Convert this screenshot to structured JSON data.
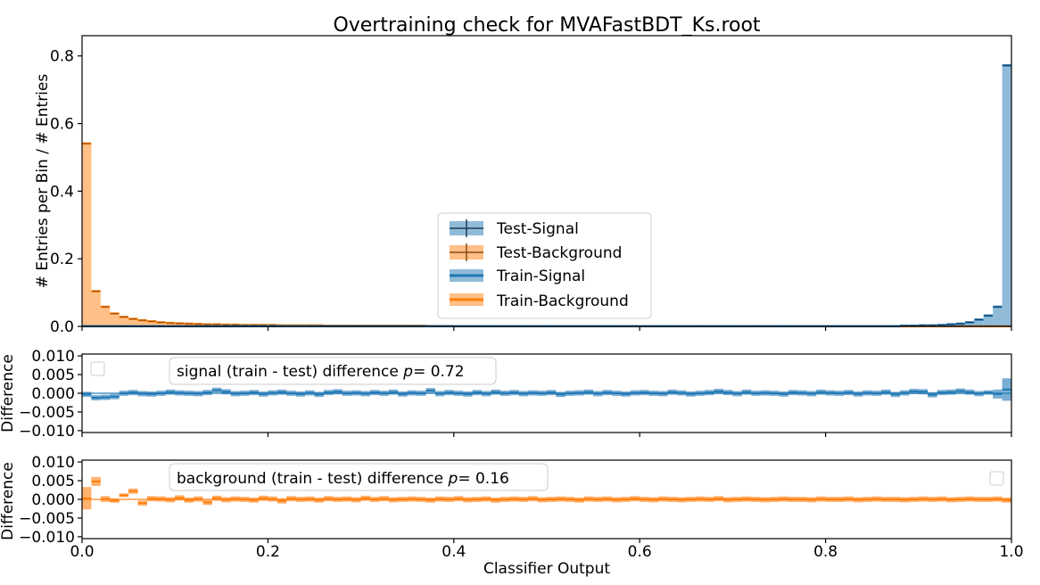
{
  "chart_data": [
    {
      "panel": "main",
      "type": "bar",
      "title": "Overtraining check for MVAFastBDT_Ks.root",
      "xlabel": "",
      "ylabel": "# Entries per Bin / # Entries",
      "xlim": [
        0.0,
        1.0
      ],
      "ylim": [
        0.0,
        0.86
      ],
      "yticks": [
        "0.0",
        "0.2",
        "0.4",
        "0.6",
        "0.8"
      ],
      "xticks": [
        "0.0",
        "0.2",
        "0.4",
        "0.6",
        "0.8",
        "1.0"
      ],
      "legend_location": "center",
      "legend": [
        "Test-Signal",
        "Test-Background",
        "Train-Signal",
        "Train-Background"
      ],
      "colors": {
        "signal": "#1f77b4",
        "background": "#ff7f0e"
      },
      "bins": 100,
      "background_values": [
        0.541,
        0.104,
        0.058,
        0.038,
        0.028,
        0.022,
        0.018,
        0.015,
        0.012,
        0.01,
        0.009,
        0.008,
        0.007,
        0.006,
        0.006,
        0.005,
        0.005,
        0.004,
        0.004,
        0.004,
        0.004,
        0.003,
        0.003,
        0.003,
        0.003,
        0.003,
        0.002,
        0.002,
        0.002,
        0.002,
        0.002,
        0.002,
        0.002,
        0.002,
        0.002,
        0.002,
        0.002,
        0.001,
        0.001,
        0.001
      ],
      "signal_values_last": [
        0.002,
        0.002,
        0.003,
        0.003,
        0.004,
        0.006,
        0.008,
        0.012,
        0.02,
        0.032,
        0.058,
        0.772
      ],
      "series": [
        {
          "name": "Test-Signal",
          "peak_value": 0.772,
          "peak_x": 0.995
        },
        {
          "name": "Test-Background",
          "peak_value": 0.541,
          "peak_x": 0.005
        },
        {
          "name": "Train-Signal"
        },
        {
          "name": "Train-Background"
        }
      ]
    },
    {
      "panel": "signal_difference",
      "type": "bar",
      "ylabel": "Difference",
      "ylim": [
        -0.0105,
        0.0105
      ],
      "yticks": [
        "0.010",
        "0.005",
        "0.000",
        "−0.005",
        "−0.010"
      ],
      "annotation_prefix": "signal (train - test) difference ",
      "annotation_p": "= 0.72",
      "color": "#1f77b4",
      "values": [
        -0.0003,
        -0.0012,
        -0.0011,
        -0.0009,
        0.0,
        0.0002,
        -0.0001,
        -0.0002,
        0.0,
        0.0003,
        0.0001,
        0.0,
        -0.0001,
        0.0002,
        0.0008,
        0.0004,
        -0.0001,
        0.0,
        0.0002,
        -0.0002,
        0.0001,
        0.0003,
        0.0,
        -0.0002,
        0.0001,
        -0.0003,
        0.0002,
        0.0004,
        0.0,
        0.0001,
        -0.0001,
        0.0002,
        0.0,
        0.0003,
        -0.0002,
        0.0001,
        0.0,
        0.0007,
        -0.0001,
        0.0002,
        0.0,
        -0.0002,
        0.0002,
        -0.0001,
        0.0003,
        0.0,
        0.0002,
        -0.0001,
        0.0001,
        0.0,
        0.0002,
        -0.0003,
        0.0,
        0.0001,
        0.0003,
        -0.0001,
        0.0002,
        0.0,
        -0.0002,
        0.0001,
        0.0002,
        0.0,
        -0.0001,
        0.0003,
        0.0001,
        -0.0002,
        0.0,
        0.0002,
        0.0005,
        0.0002,
        -0.0001,
        0.0003,
        0.0,
        0.0001,
        0.0,
        -0.0002,
        0.0002,
        0.0001,
        -0.0001,
        0.0003,
        0.0001,
        0.0,
        0.0002,
        -0.0002,
        0.0001,
        0.0,
        0.0003,
        -0.0003,
        0.0001,
        0.0005,
        0.0004,
        -0.0004,
        0.0002,
        0.0003,
        0.0006,
        0.0003,
        -0.0001,
        0.0002,
        -0.0002,
        0.001
      ],
      "errors_last": [
        0.0006,
        0.0012,
        0.003
      ]
    },
    {
      "panel": "background_difference",
      "type": "bar",
      "xlabel": "Classifier Output",
      "ylabel": "Difference",
      "ylim": [
        -0.0105,
        0.0105
      ],
      "yticks": [
        "0.010",
        "0.005",
        "0.000",
        "−0.005",
        "−0.010"
      ],
      "xticks": [
        "0.0",
        "0.2",
        "0.4",
        "0.6",
        "0.8",
        "1.0"
      ],
      "annotation_prefix": "background (train - test) difference ",
      "annotation_p": "= 0.16",
      "color": "#ff7f0e",
      "values": [
        0.0003,
        0.0048,
        0.0001,
        -0.0003,
        0.0011,
        0.0022,
        -0.001,
        0.0002,
        0.0001,
        -0.0001,
        0.0004,
        -0.0002,
        0.0001,
        -0.0008,
        0.0003,
        -0.0001,
        0.0001,
        0.0,
        -0.0002,
        0.0003,
        0.0001,
        -0.0004,
        0.0002,
        0.0,
        0.0001,
        -0.0002,
        0.0002,
        0.0,
        0.0001,
        -0.0001,
        0.0003,
        0.0,
        0.0002,
        -0.0001,
        0.0,
        0.0001,
        0.0,
        -0.0002,
        0.0001,
        0.0,
        0.0002,
        -0.0001,
        0.0,
        0.0001,
        -0.0002,
        0.0,
        0.0001,
        0.0,
        0.0002,
        -0.0001,
        0.0,
        0.0001,
        0.0,
        -0.0002,
        0.0001,
        0.0,
        0.0001,
        -0.0001,
        0.0,
        0.0002,
        0.0,
        -0.0001,
        0.0001,
        0.0,
        -0.0001,
        0.0,
        0.0001,
        0.0,
        0.0002,
        -0.0001,
        0.0,
        0.0001,
        0.0,
        -0.0001,
        0.0,
        0.0001,
        0.0,
        0.0,
        -0.0001,
        0.0001,
        0.0,
        0.0,
        0.0001,
        -0.0001,
        0.0,
        0.0001,
        0.0,
        0.0,
        -0.0001,
        0.0,
        0.0001,
        0.0,
        0.0001,
        -0.0001,
        0.0,
        0.0001,
        0.0,
        0.0,
        0.0001,
        -0.0002
      ],
      "errors_first": [
        0.003,
        0.0012,
        0.0008,
        0.0006,
        0.0005
      ]
    }
  ]
}
